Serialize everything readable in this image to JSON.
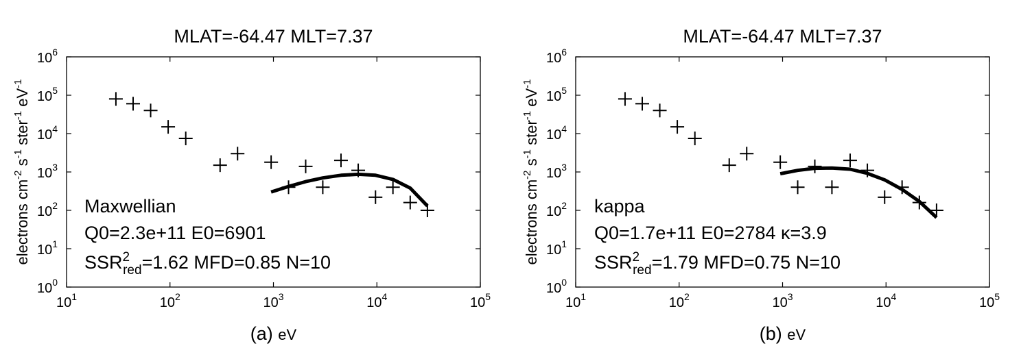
{
  "chart_data": [
    {
      "type": "scatter",
      "panel_label": "(a)",
      "title": "MLAT=-64.47 MLT=7.37",
      "xlabel": "eV",
      "ylabel": {
        "base": "electrons cm",
        "exp1": "-2",
        "mid1": " s",
        "exp2": "-1",
        "mid2": " ster",
        "exp3": "-1",
        "mid3": " eV",
        "exp4": "-1"
      },
      "xscale": "log",
      "yscale": "log",
      "xlim": [
        10,
        100000
      ],
      "ylim": [
        1,
        1000000
      ],
      "xticks": [
        {
          "base": "10",
          "exp": "1",
          "value": 10
        },
        {
          "base": "10",
          "exp": "2",
          "value": 100
        },
        {
          "base": "10",
          "exp": "3",
          "value": 1000
        },
        {
          "base": "10",
          "exp": "4",
          "value": 10000
        },
        {
          "base": "10",
          "exp": "5",
          "value": 100000
        }
      ],
      "yticks": [
        {
          "base": "10",
          "exp": "0",
          "value": 1
        },
        {
          "base": "10",
          "exp": "1",
          "value": 10
        },
        {
          "base": "10",
          "exp": "2",
          "value": 100
        },
        {
          "base": "10",
          "exp": "3",
          "value": 1000
        },
        {
          "base": "10",
          "exp": "4",
          "value": 10000
        },
        {
          "base": "10",
          "exp": "5",
          "value": 100000
        },
        {
          "base": "10",
          "exp": "6",
          "value": 1000000
        }
      ],
      "grid": false,
      "series": [
        {
          "marker": "plus",
          "x": [
            30,
            44,
            65,
            96,
            142,
            305,
            450,
            950,
            1400,
            2050,
            3000,
            4500,
            6600,
            9700,
            14300,
            21000,
            30800
          ],
          "y": [
            80000,
            60000,
            40000,
            15000,
            7500,
            1500,
            3000,
            1800,
            400,
            1400,
            400,
            2000,
            1100,
            220,
            400,
            160,
            100
          ]
        },
        {
          "line": "fit",
          "x": [
            950,
            1400,
            2050,
            3000,
            4500,
            6600,
            9700,
            14300,
            21000,
            30800
          ],
          "y": [
            300,
            420,
            560,
            700,
            820,
            870,
            820,
            640,
            380,
            130
          ]
        }
      ],
      "annotations": [
        {
          "text": "Maxwellian"
        },
        {
          "text": "Q0=2.3e+11 E0=6901"
        },
        {
          "prefix": "SSR",
          "sup": "2",
          "sub": "red",
          "suffix": "=1.62 MFD=0.85 N=10"
        }
      ]
    },
    {
      "type": "scatter",
      "panel_label": "(b)",
      "title": "MLAT=-64.47 MLT=7.37",
      "xlabel": "eV",
      "ylabel": {
        "base": "electrons cm",
        "exp1": "-2",
        "mid1": " s",
        "exp2": "-1",
        "mid2": " ster",
        "exp3": "-1",
        "mid3": " eV",
        "exp4": "-1"
      },
      "xscale": "log",
      "yscale": "log",
      "xlim": [
        10,
        100000
      ],
      "ylim": [
        1,
        1000000
      ],
      "xticks": [
        {
          "base": "10",
          "exp": "1",
          "value": 10
        },
        {
          "base": "10",
          "exp": "2",
          "value": 100
        },
        {
          "base": "10",
          "exp": "3",
          "value": 1000
        },
        {
          "base": "10",
          "exp": "4",
          "value": 10000
        },
        {
          "base": "10",
          "exp": "5",
          "value": 100000
        }
      ],
      "yticks": [
        {
          "base": "10",
          "exp": "0",
          "value": 1
        },
        {
          "base": "10",
          "exp": "1",
          "value": 10
        },
        {
          "base": "10",
          "exp": "2",
          "value": 100
        },
        {
          "base": "10",
          "exp": "3",
          "value": 1000
        },
        {
          "base": "10",
          "exp": "4",
          "value": 10000
        },
        {
          "base": "10",
          "exp": "5",
          "value": 100000
        },
        {
          "base": "10",
          "exp": "6",
          "value": 1000000
        }
      ],
      "grid": false,
      "series": [
        {
          "marker": "plus",
          "x": [
            30,
            44,
            65,
            96,
            142,
            305,
            450,
            950,
            1400,
            2050,
            3000,
            4500,
            6600,
            9700,
            14300,
            21000,
            30800
          ],
          "y": [
            80000,
            60000,
            40000,
            15000,
            7500,
            1500,
            3000,
            1800,
            400,
            1400,
            400,
            2000,
            1100,
            220,
            400,
            160,
            100
          ]
        },
        {
          "line": "fit",
          "x": [
            950,
            1400,
            2050,
            3000,
            4500,
            6600,
            9700,
            14300,
            21000,
            30800
          ],
          "y": [
            900,
            1100,
            1250,
            1270,
            1180,
            920,
            620,
            350,
            170,
            65
          ]
        }
      ],
      "annotations": [
        {
          "text": "kappa"
        },
        {
          "text": "Q0=1.7e+11 E0=2784 κ=3.9"
        },
        {
          "prefix": "SSR",
          "sup": "2",
          "sub": "red",
          "suffix": "=1.79 MFD=0.75 N=10"
        }
      ]
    }
  ]
}
